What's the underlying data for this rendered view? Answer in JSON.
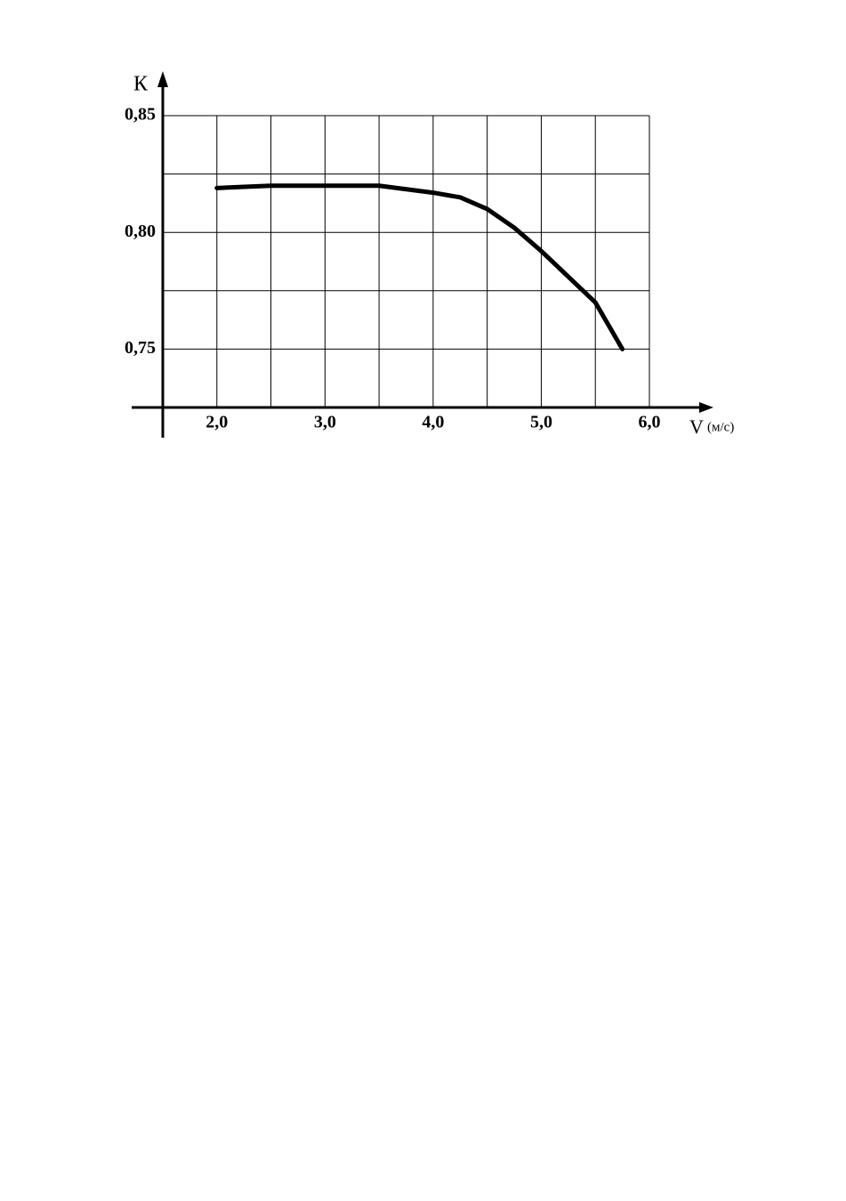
{
  "chart_data": {
    "type": "line",
    "y_label": "К",
    "x_label": "V",
    "x_unit": "(м/с)",
    "x": [
      2.0,
      2.5,
      3.0,
      3.5,
      4.0,
      4.25,
      4.5,
      4.75,
      5.0,
      5.25,
      5.5,
      5.75
    ],
    "series": [
      {
        "name": "K",
        "color": "#000000",
        "values": [
          0.819,
          0.82,
          0.82,
          0.82,
          0.817,
          0.815,
          0.81,
          0.802,
          0.792,
          0.781,
          0.77,
          0.75
        ]
      }
    ],
    "xlim": [
      1.5,
      6.0
    ],
    "ylim": [
      0.725,
      0.85
    ],
    "xticks": [
      {
        "value": 2,
        "label": "2,0"
      },
      {
        "value": 3,
        "label": "3,0"
      },
      {
        "value": 4,
        "label": "4,0"
      },
      {
        "value": 5,
        "label": "5,0"
      },
      {
        "value": 6,
        "label": "6,0"
      }
    ],
    "yticks": [
      {
        "value": 0.75,
        "label": "0,75"
      },
      {
        "value": 0.8,
        "label": "0,80"
      },
      {
        "value": 0.85,
        "label": "0,85"
      }
    ],
    "xgrid": [
      2.0,
      2.5,
      3.0,
      3.5,
      4.0,
      4.5,
      5.0,
      5.5,
      6.0
    ],
    "ygrid": [
      0.75,
      0.775,
      0.8,
      0.825,
      0.85
    ],
    "grid": true
  }
}
